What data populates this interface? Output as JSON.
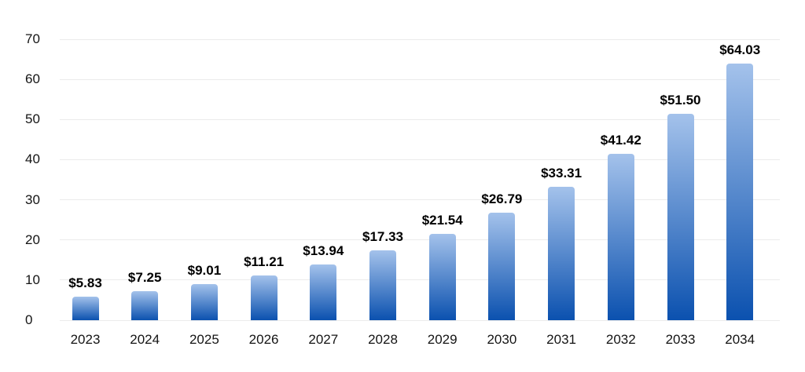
{
  "chart_data": {
    "type": "bar",
    "categories": [
      "2023",
      "2024",
      "2025",
      "2026",
      "2027",
      "2028",
      "2029",
      "2030",
      "2031",
      "2032",
      "2033",
      "2034"
    ],
    "values": [
      5.83,
      7.25,
      9.01,
      11.21,
      13.94,
      17.33,
      21.54,
      26.79,
      33.31,
      41.42,
      51.5,
      64.03
    ],
    "value_labels": [
      "$5.83",
      "$7.25",
      "$9.01",
      "$11.21",
      "$13.94",
      "$17.33",
      "$21.54",
      "$26.79",
      "$33.31",
      "$41.42",
      "$51.50",
      "$64.03"
    ],
    "yticks": [
      0,
      10,
      20,
      30,
      40,
      50,
      60,
      70
    ],
    "ylim": [
      0,
      70
    ],
    "grid": true,
    "legend": false,
    "xlabel": "",
    "ylabel": "",
    "colors": {
      "bar_gradient_top": "#A4C2EB",
      "bar_gradient_bottom": "#0B51AF",
      "gridline": "#EBEBEB",
      "axis_text": "#141414",
      "value_text": "#000000",
      "background": "#FFFFFF"
    }
  }
}
